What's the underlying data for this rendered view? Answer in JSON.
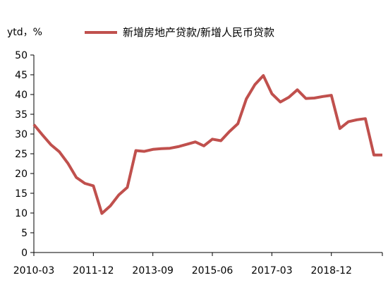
{
  "chart_data": {
    "type": "line",
    "title": "",
    "ylabel": "ytd，%",
    "xlabel": "",
    "ylim": [
      0,
      50
    ],
    "yticks": [
      0,
      5,
      10,
      15,
      20,
      25,
      30,
      35,
      40,
      45,
      50
    ],
    "xtick_labels": [
      "2010-03",
      "2011-12",
      "2013-09",
      "2015-06",
      "2017-03",
      "2018-12"
    ],
    "grid": false,
    "legend": "top",
    "series": [
      {
        "name": "新增房地产贷款/新增人民币贷款",
        "color": "#c0504d",
        "x": [
          "2010-03",
          "2010-06",
          "2010-09",
          "2010-12",
          "2011-03",
          "2011-06",
          "2011-09",
          "2011-12",
          "2012-03",
          "2012-06",
          "2012-09",
          "2012-12",
          "2013-03",
          "2013-06",
          "2013-09",
          "2013-12",
          "2014-03",
          "2014-06",
          "2014-09",
          "2014-12",
          "2015-03",
          "2015-06",
          "2015-09",
          "2015-12",
          "2016-03",
          "2016-06",
          "2016-09",
          "2016-12",
          "2017-03",
          "2017-06",
          "2017-09",
          "2017-12",
          "2018-03",
          "2018-06",
          "2018-09",
          "2018-12",
          "2019-03",
          "2019-06",
          "2019-09",
          "2019-12",
          "2020-03",
          "2020-06"
        ],
        "values": [
          32.4,
          29.8,
          27.3,
          25.5,
          22.6,
          19.0,
          17.5,
          16.9,
          9.9,
          11.8,
          14.6,
          16.5,
          25.8,
          25.6,
          26.1,
          26.3,
          26.4,
          26.8,
          27.4,
          28.0,
          27.0,
          28.7,
          28.3,
          30.6,
          32.6,
          38.9,
          42.5,
          44.8,
          40.2,
          38.1,
          39.3,
          41.2,
          39.0,
          39.1,
          39.5,
          39.8,
          31.4,
          33.1,
          33.6,
          33.9,
          24.7,
          24.7
        ]
      }
    ]
  }
}
